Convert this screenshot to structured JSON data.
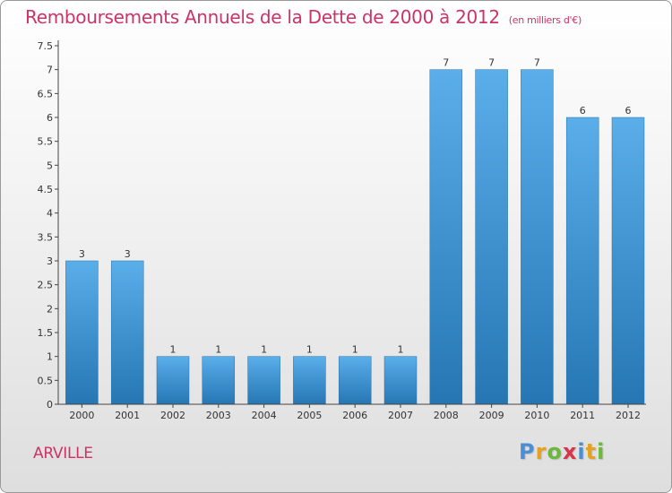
{
  "header": {
    "title": "Remboursements Annuels de la Dette de 2000 à 2012",
    "unit": "(en milliers d'€)"
  },
  "footer": {
    "commune": "ARVILLE",
    "logo_letters": [
      "P",
      "r",
      "o",
      "x",
      "i",
      "t",
      "i"
    ]
  },
  "colors": {
    "title": "#cc3366",
    "bar_light": "#5aaeea",
    "bar_dark": "#2676b4"
  },
  "chart_data": {
    "type": "bar",
    "title": "Remboursements Annuels de la Dette de 2000 à 2012",
    "subtitle": "(en milliers d'€)",
    "xlabel": "",
    "ylabel": "",
    "categories": [
      "2000",
      "2001",
      "2002",
      "2003",
      "2004",
      "2005",
      "2006",
      "2007",
      "2008",
      "2009",
      "2010",
      "2011",
      "2012"
    ],
    "values": [
      3,
      3,
      1,
      1,
      1,
      1,
      1,
      1,
      7,
      7,
      7,
      6,
      6
    ],
    "data_labels": [
      "3",
      "3",
      "1",
      "1",
      "1",
      "1",
      "1",
      "1",
      "7",
      "7",
      "7",
      "6",
      "6"
    ],
    "ylim": [
      0,
      7.5
    ],
    "yticks": [
      "0",
      "0.5",
      "1",
      "1.5",
      "2",
      "2.5",
      "3",
      "3.5",
      "4",
      "4.5",
      "5",
      "5.5",
      "6",
      "6.5",
      "7",
      "7.5"
    ],
    "grid": false,
    "legend": "none"
  }
}
